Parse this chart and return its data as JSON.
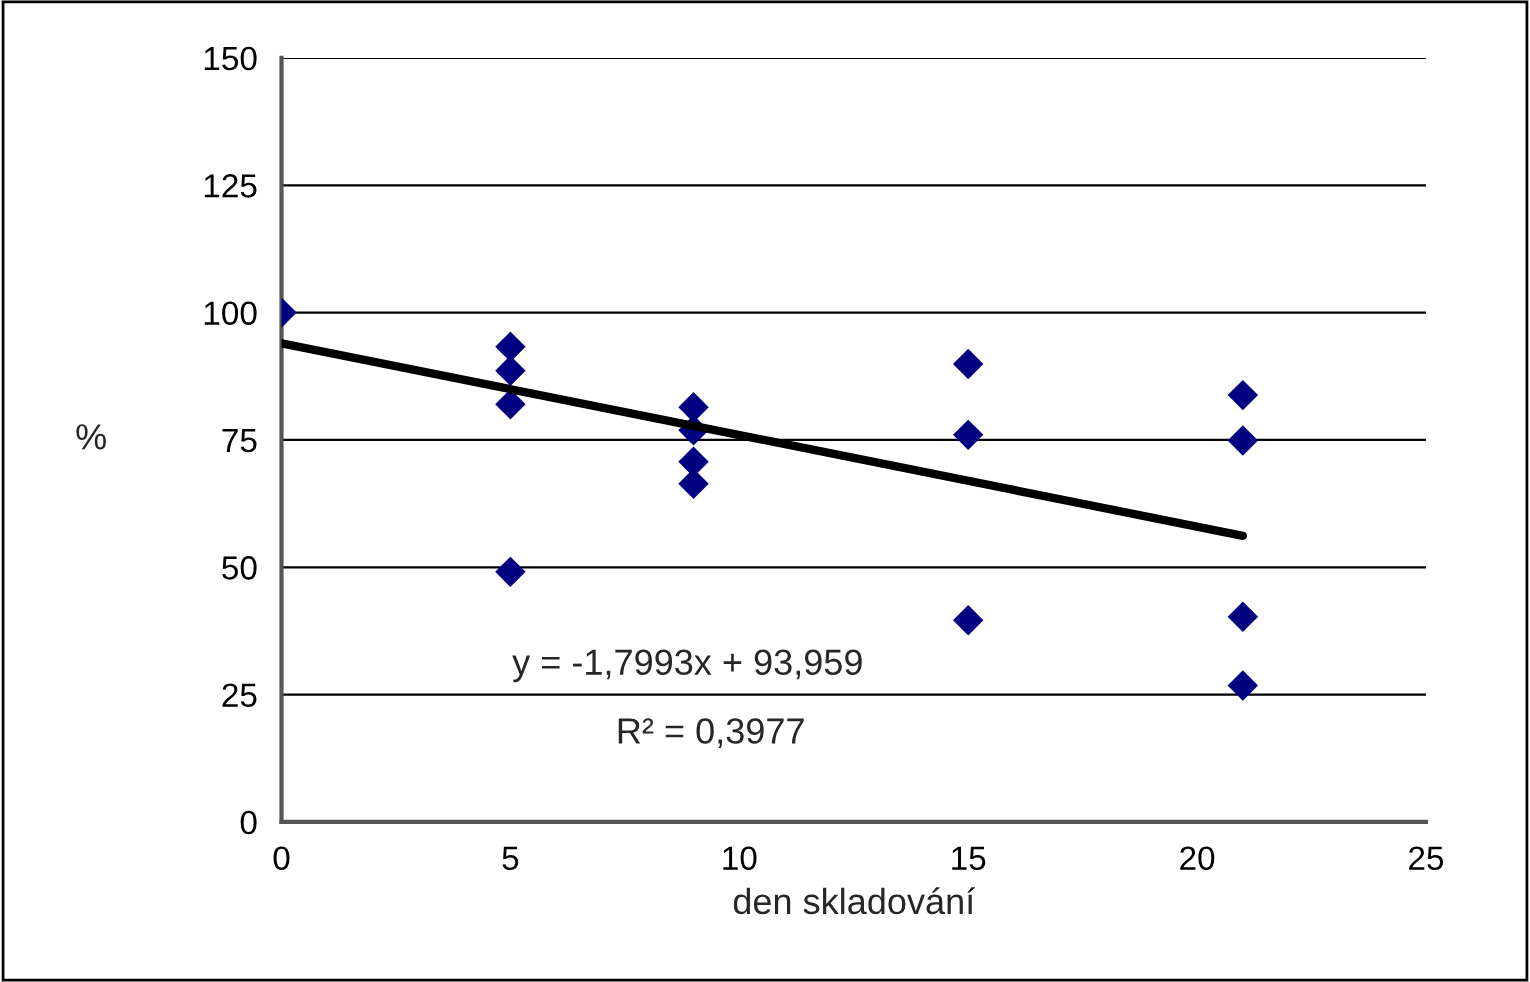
{
  "chart_data": {
    "type": "scatter",
    "xlabel": "den skladování",
    "ylabel": "%",
    "xlim": [
      0,
      25
    ],
    "xticks": [
      0,
      5,
      10,
      15,
      20,
      25
    ],
    "ylim": [
      0,
      150
    ],
    "yticks": [
      0,
      25,
      50,
      75,
      100,
      125,
      150
    ],
    "grid": "y",
    "marker": "diamond",
    "legend": false,
    "series": [
      {
        "color": "#000080",
        "x": [
          0,
          5,
          5,
          5,
          5,
          9,
          9,
          9,
          9,
          15,
          15,
          15,
          21,
          21,
          21,
          21
        ],
        "values": [
          100,
          93.3,
          88.6,
          82,
          49.1,
          81.4,
          76.9,
          70.7,
          66.4,
          89.9,
          76,
          39.6,
          83.8,
          74.9,
          40.3,
          26.8
        ]
      },
      {
        "type": "line",
        "color": "#000000",
        "marker": "none",
        "x": [
          0,
          21
        ],
        "values": [
          93.959,
          56.174
        ]
      }
    ],
    "annotations": [
      "y = -1,7993x + 93,959",
      "R² = 0,3977"
    ]
  }
}
